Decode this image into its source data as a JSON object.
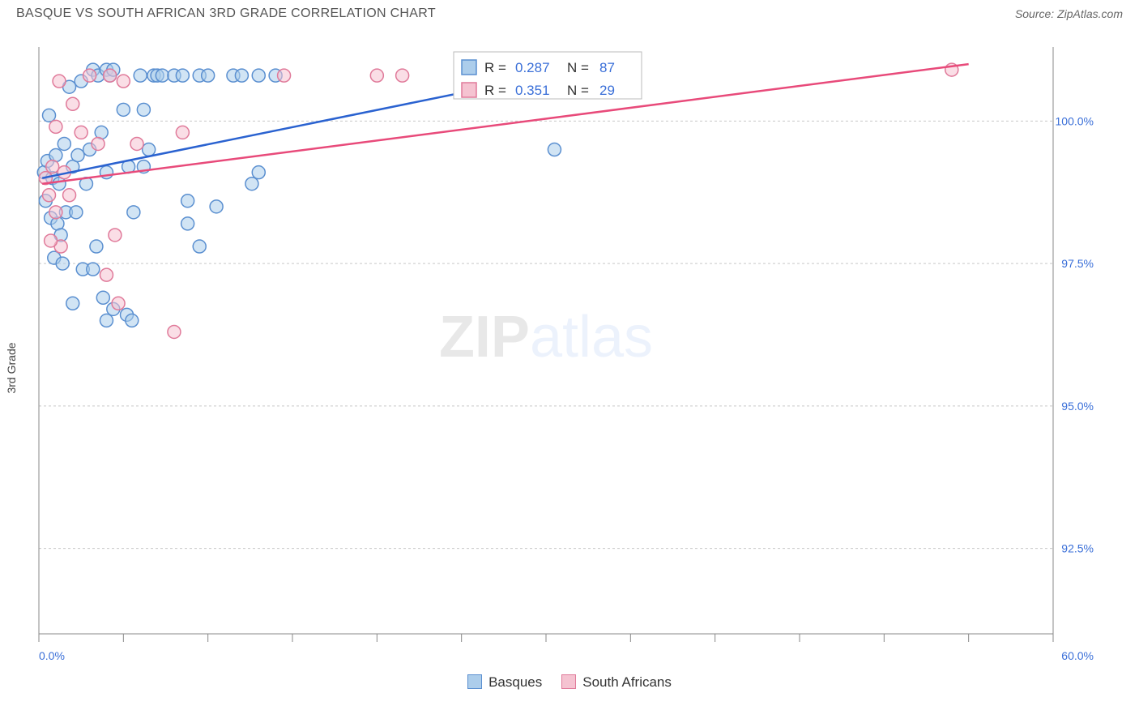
{
  "title": "BASQUE VS SOUTH AFRICAN 3RD GRADE CORRELATION CHART",
  "source": "Source: ZipAtlas.com",
  "ylabel": "3rd Grade",
  "watermark": {
    "zip": "ZIP",
    "atlas": "atlas"
  },
  "chart": {
    "type": "scatter",
    "xlim": [
      0,
      60
    ],
    "ylim": [
      91,
      101.3
    ],
    "xtick_positions": [
      0,
      5,
      10,
      15,
      20,
      25,
      30,
      35,
      40,
      45,
      50,
      55,
      60
    ],
    "xtick_labels_shown": {
      "0": "0.0%",
      "60": "60.0%"
    },
    "ytick_positions": [
      92.5,
      95.0,
      97.5,
      100.0
    ],
    "ytick_labels": [
      "92.5%",
      "95.0%",
      "97.5%",
      "100.0%"
    ],
    "grid_color": "#d0d0d0",
    "background_color": "#ffffff",
    "colors": {
      "blue_fill": "#accdeb",
      "blue_stroke": "#5a8fd0",
      "blue_line": "#2a62d0",
      "pink_fill": "#f5c3d1",
      "pink_stroke": "#e07a9a",
      "pink_line": "#e84a7a"
    },
    "marker_radius": 8,
    "series": [
      {
        "name": "Basques",
        "color": "blue",
        "R": "0.287",
        "N": "87",
        "trend": {
          "x1": 0.2,
          "y1": 99.0,
          "x2": 35,
          "y2": 101.1
        },
        "points": [
          [
            0.3,
            99.1
          ],
          [
            0.5,
            99.3
          ],
          [
            0.8,
            99.0
          ],
          [
            0.6,
            100.1
          ],
          [
            1.0,
            99.4
          ],
          [
            1.2,
            98.9
          ],
          [
            0.4,
            98.6
          ],
          [
            1.5,
            99.6
          ],
          [
            1.8,
            100.6
          ],
          [
            2.0,
            99.2
          ],
          [
            2.3,
            99.4
          ],
          [
            2.5,
            100.7
          ],
          [
            0.7,
            98.3
          ],
          [
            0.9,
            97.6
          ],
          [
            1.1,
            98.2
          ],
          [
            1.3,
            98.0
          ],
          [
            1.6,
            98.4
          ],
          [
            2.2,
            98.4
          ],
          [
            2.8,
            98.9
          ],
          [
            3.0,
            99.5
          ],
          [
            3.2,
            100.9
          ],
          [
            3.5,
            100.8
          ],
          [
            3.7,
            99.8
          ],
          [
            4.0,
            100.9
          ],
          [
            4.0,
            99.1
          ],
          [
            4.2,
            100.8
          ],
          [
            4.4,
            100.9
          ],
          [
            5.0,
            100.2
          ],
          [
            5.3,
            99.2
          ],
          [
            5.6,
            98.4
          ],
          [
            6.0,
            100.8
          ],
          [
            6.2,
            100.2
          ],
          [
            6.2,
            99.2
          ],
          [
            6.5,
            99.5
          ],
          [
            6.8,
            100.8
          ],
          [
            7.0,
            100.8
          ],
          [
            7.3,
            100.8
          ],
          [
            8.0,
            100.8
          ],
          [
            8.5,
            100.8
          ],
          [
            8.8,
            98.6
          ],
          [
            9.5,
            100.8
          ],
          [
            10.0,
            100.8
          ],
          [
            10.5,
            98.5
          ],
          [
            11.5,
            100.8
          ],
          [
            12.0,
            100.8
          ],
          [
            12.6,
            98.9
          ],
          [
            13.0,
            99.1
          ],
          [
            13.0,
            100.8
          ],
          [
            14.0,
            100.8
          ],
          [
            1.4,
            97.5
          ],
          [
            2.0,
            96.8
          ],
          [
            2.6,
            97.4
          ],
          [
            3.2,
            97.4
          ],
          [
            3.4,
            97.8
          ],
          [
            3.8,
            96.9
          ],
          [
            4.0,
            96.5
          ],
          [
            4.4,
            96.7
          ],
          [
            5.2,
            96.6
          ],
          [
            5.5,
            96.5
          ],
          [
            8.8,
            98.2
          ],
          [
            9.5,
            97.8
          ],
          [
            30.5,
            99.5
          ],
          [
            30.5,
            100.8
          ]
        ]
      },
      {
        "name": "South Africans",
        "color": "pink",
        "R": "0.351",
        "N": "29",
        "trend": {
          "x1": 0.2,
          "y1": 98.9,
          "x2": 55,
          "y2": 101.0
        },
        "points": [
          [
            0.4,
            99.0
          ],
          [
            0.6,
            98.7
          ],
          [
            0.8,
            99.2
          ],
          [
            1.0,
            99.9
          ],
          [
            1.2,
            100.7
          ],
          [
            1.5,
            99.1
          ],
          [
            1.8,
            98.7
          ],
          [
            2.0,
            100.3
          ],
          [
            2.5,
            99.8
          ],
          [
            3.0,
            100.8
          ],
          [
            3.5,
            99.6
          ],
          [
            4.2,
            100.8
          ],
          [
            4.5,
            98.0
          ],
          [
            5.0,
            100.7
          ],
          [
            5.8,
            99.6
          ],
          [
            8.5,
            99.8
          ],
          [
            14.5,
            100.8
          ],
          [
            20.0,
            100.8
          ],
          [
            21.5,
            100.8
          ],
          [
            34.0,
            100.8
          ],
          [
            54.0,
            100.9
          ],
          [
            4.7,
            96.8
          ],
          [
            4.0,
            97.3
          ],
          [
            8.0,
            96.3
          ],
          [
            1.3,
            97.8
          ],
          [
            1.0,
            98.4
          ],
          [
            0.7,
            97.9
          ]
        ]
      }
    ],
    "legend_top": [
      {
        "color": "blue",
        "R_label": "R =",
        "R_val": "0.287",
        "N_label": "N =",
        "N_val": "87"
      },
      {
        "color": "pink",
        "R_label": "R =",
        "R_val": "0.351",
        "N_label": "N =",
        "N_val": "29"
      }
    ],
    "legend_bottom": [
      {
        "color": "blue",
        "label": "Basques"
      },
      {
        "color": "pink",
        "label": "South Africans"
      }
    ]
  }
}
